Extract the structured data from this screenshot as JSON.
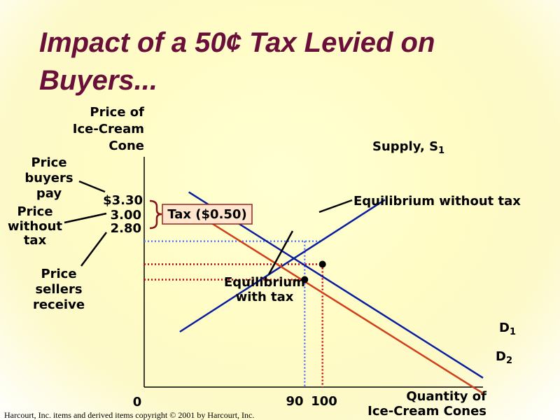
{
  "slide": {
    "title_line1": "Impact of a 50¢ Tax Levied on",
    "title_line2": "Buyers...",
    "footer": "Harcourt, Inc. items and derived items copyright © 2001  by Harcourt, Inc."
  },
  "chart_data": {
    "type": "line",
    "title": "Impact of a 50¢ Tax Levied on Buyers...",
    "ylabel": [
      "Price of",
      "Ice-Cream",
      "Cone"
    ],
    "xlabel": [
      "Quantity of",
      "Ice-Cream Cones"
    ],
    "origin_label": "0",
    "x_ticks": [
      "90",
      "100"
    ],
    "y_ticks": [
      "$3.30",
      "3.00",
      "2.80"
    ],
    "xlim": [
      0,
      190
    ],
    "ylim": [
      1.4,
      4.4
    ],
    "series": [
      {
        "name": "Supply, S",
        "subscript": "1",
        "color": "#0a1ca0",
        "points": [
          [
            20,
            2.12
          ],
          [
            135,
            3.84
          ]
        ]
      },
      {
        "name": "D",
        "subscript": "1",
        "color": "#0a1ca0",
        "points": [
          [
            25,
            3.94
          ],
          [
            190,
            1.52
          ]
        ]
      },
      {
        "name": "D",
        "subscript": "2",
        "color": "#d0401a",
        "points": [
          [
            23,
            3.75
          ],
          [
            190,
            1.32
          ]
        ]
      }
    ],
    "equilibria": [
      {
        "label": "Equilibrium without tax",
        "x": 100,
        "y": 3.0
      },
      {
        "label": [
          "Equilibrium",
          "with tax"
        ],
        "x": 90,
        "y": 2.8
      }
    ],
    "tax_label": "Tax ($0.50)",
    "side_labels": {
      "buyers_pay": [
        "Price",
        "buyers",
        "pay"
      ],
      "without_tax": [
        "Price",
        "without",
        "tax"
      ],
      "sellers_receive": [
        "Price",
        "sellers",
        "receive"
      ]
    },
    "colors": {
      "title": "#6a0f3a",
      "blue_curves": "#0a1ca0",
      "red_curve": "#d0401a",
      "buyer_price_line": "#5577ff",
      "seller_price_line": "#cc0000",
      "brace": "#8a1020",
      "tax_box_fill": "#ffe6cc"
    }
  }
}
